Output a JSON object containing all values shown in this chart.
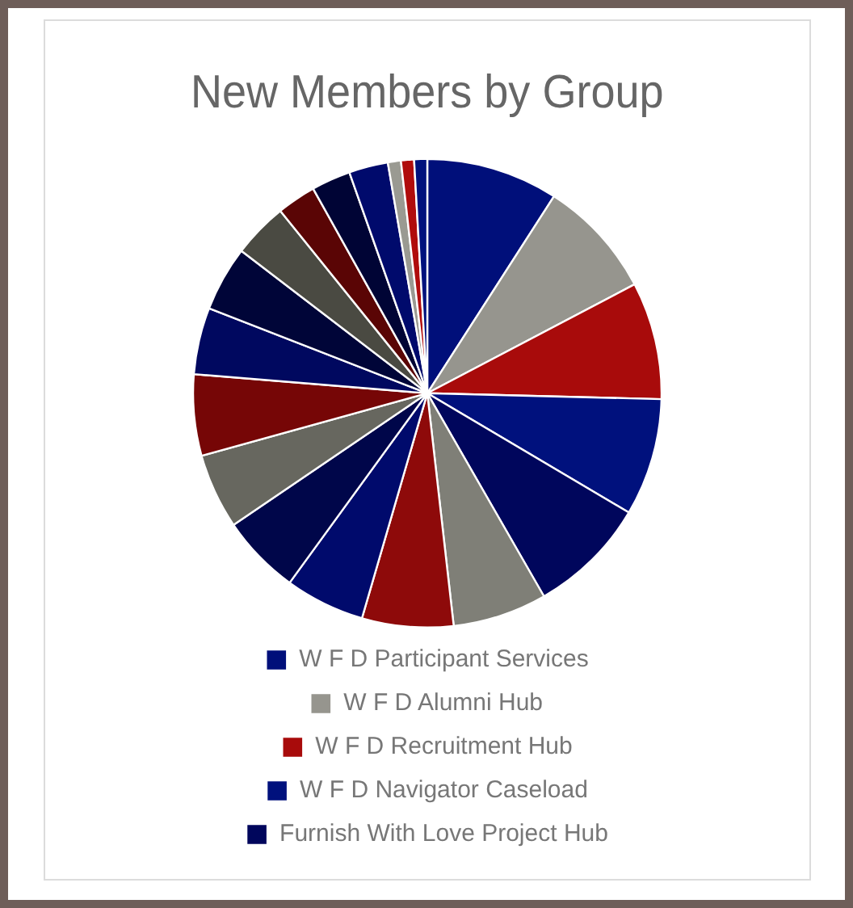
{
  "chart_data": {
    "type": "pie",
    "title": "New Members by Group",
    "categories": [
      "W F D Participant Services",
      "W F D Alumni Hub",
      "W F D Recruitment Hub",
      "W F D Navigator Caseload",
      "Furnish With Love Project Hub",
      null,
      null,
      null,
      null,
      null,
      null,
      null,
      null,
      null,
      null,
      null,
      null,
      null,
      null,
      null
    ],
    "values": [
      9.1,
      8.2,
      8.1,
      8.1,
      8.2,
      6.5,
      6.3,
      5.5,
      5.5,
      5.2,
      5.6,
      4.6,
      4.5,
      3.8,
      2.7,
      2.7,
      2.7,
      0.9,
      0.9,
      0.9
    ],
    "colors": [
      "#000f7a",
      "#96958e",
      "#a80b0b",
      "#00117d",
      "#00065c",
      "#7f7f77",
      "#8e0a0a",
      "#000a6c",
      "#00064a",
      "#67675f",
      "#760606",
      "#00085f",
      "#000538",
      "#4a4a42",
      "#5a0505",
      "#000435",
      "#000a6c",
      "#9a9a92",
      "#b00c0c",
      "#00117d"
    ],
    "legend": "bottom"
  }
}
